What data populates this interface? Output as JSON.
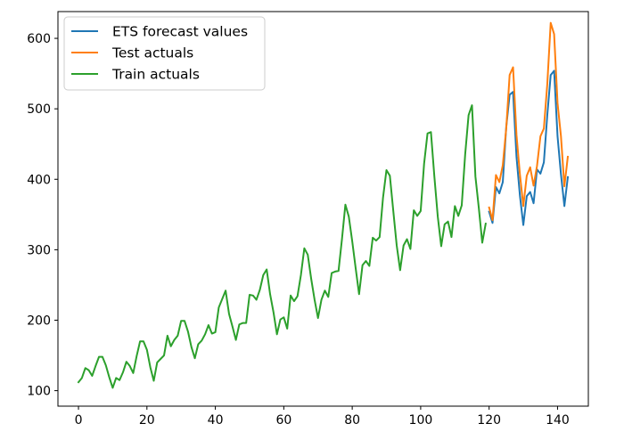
{
  "chart_data": {
    "type": "line",
    "title": "",
    "xlabel": "",
    "ylabel": "",
    "xlim": [
      -6,
      149
    ],
    "ylim": [
      78,
      638
    ],
    "xticks": [
      0,
      20,
      40,
      60,
      80,
      100,
      120,
      140
    ],
    "yticks": [
      100,
      200,
      300,
      400,
      500,
      600
    ],
    "grid": false,
    "legend": {
      "position": "top-left",
      "entries": [
        "ETS forecast values",
        "Test actuals",
        "Train actuals"
      ]
    },
    "series": [
      {
        "name": "ETS forecast values",
        "color": "#1f77b4",
        "x_start": 120,
        "values": [
          354,
          338,
          389,
          380,
          396,
          474,
          520,
          524,
          432,
          377,
          335,
          376,
          382,
          366,
          414,
          408,
          424,
          491,
          548,
          554,
          461,
          407,
          362,
          403
        ]
      },
      {
        "name": "Test actuals",
        "color": "#ff7f0e",
        "x_start": 120,
        "values": [
          360,
          342,
          406,
          396,
          420,
          472,
          548,
          559,
          463,
          407,
          362,
          405,
          417,
          391,
          419,
          461,
          472,
          535,
          622,
          606,
          508,
          461,
          390,
          432
        ]
      },
      {
        "name": "Train actuals",
        "color": "#2ca02c",
        "x_start": 0,
        "values": [
          112,
          118,
          132,
          129,
          121,
          135,
          148,
          148,
          136,
          119,
          104,
          118,
          115,
          126,
          141,
          135,
          125,
          149,
          170,
          170,
          158,
          133,
          114,
          140,
          145,
          150,
          178,
          163,
          172,
          178,
          199,
          199,
          184,
          162,
          146,
          166,
          171,
          180,
          193,
          181,
          183,
          218,
          230,
          242,
          209,
          191,
          172,
          194,
          196,
          196,
          236,
          235,
          229,
          243,
          264,
          272,
          237,
          211,
          180,
          201,
          204,
          188,
          235,
          227,
          234,
          264,
          302,
          293,
          259,
          229,
          203,
          229,
          242,
          233,
          267,
          269,
          270,
          315,
          364,
          347,
          312,
          274,
          237,
          278,
          284,
          277,
          317,
          313,
          318,
          374,
          413,
          405,
          355,
          306,
          271,
          306,
          315,
          301,
          356,
          348,
          355,
          422,
          465,
          467,
          404,
          347,
          305,
          336,
          340,
          318,
          362,
          348,
          363,
          435,
          491,
          505,
          404,
          359,
          310,
          337
        ]
      }
    ]
  }
}
